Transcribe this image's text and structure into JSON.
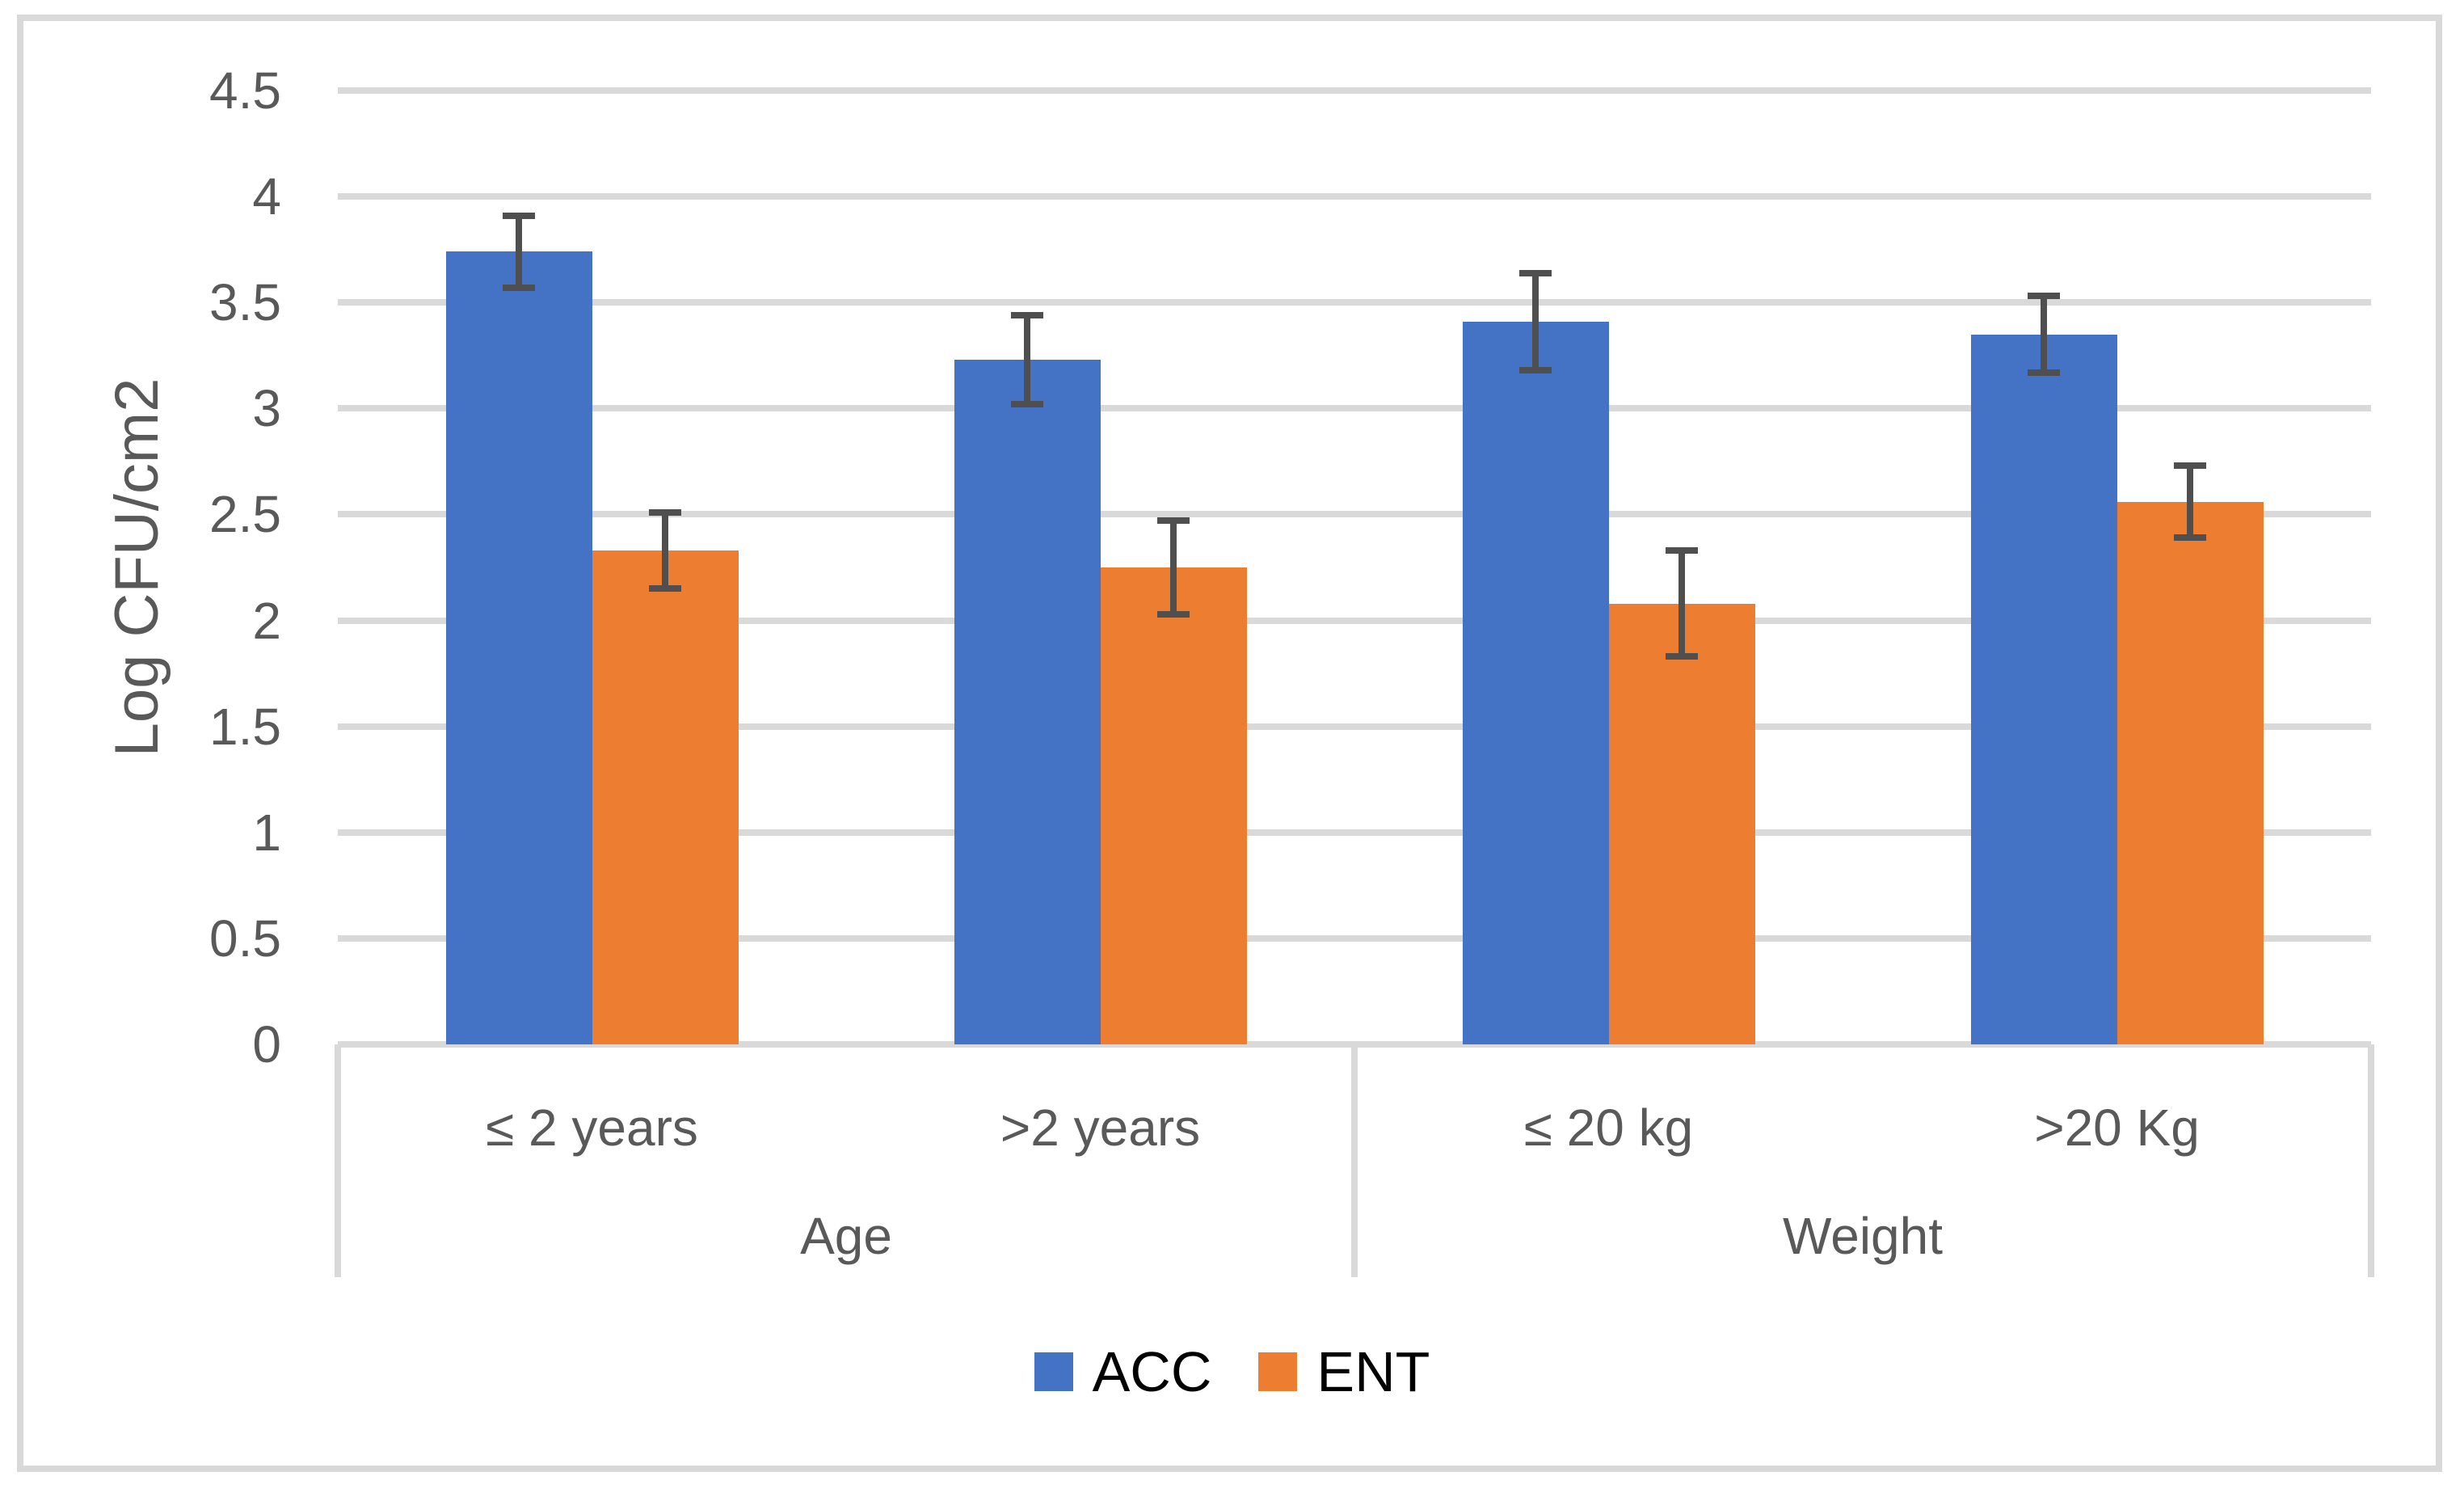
{
  "figure": {
    "background": "#FFFFFF",
    "frame_border_color": "#D9D9D9"
  },
  "chart_data": {
    "type": "bar",
    "title": "",
    "xlabel": "",
    "ylabel": "Log CFU/cm2",
    "ylim": [
      0,
      4.5
    ],
    "ytick_labels": [
      "4.5",
      "4",
      "3.5",
      "3",
      "2.5",
      "2",
      "1.5",
      "1",
      "0.5",
      "0"
    ],
    "ytick_values": [
      4.5,
      4,
      3.5,
      3,
      2.5,
      2,
      1.5,
      1,
      0.5,
      0
    ],
    "grid": true,
    "legend_position": "bottom",
    "categories": [
      "≤ 2 years",
      ">2 years",
      "≤ 20 kg",
      ">20 Kg"
    ],
    "group_axis": [
      {
        "label": "Age",
        "categories": [
          "≤ 2 years",
          ">2 years"
        ]
      },
      {
        "label": "Weight",
        "categories": [
          "≤ 20 kg",
          ">20 Kg"
        ]
      }
    ],
    "series": [
      {
        "name": "ACC",
        "color": "#4472C4",
        "values": [
          3.74,
          3.23,
          3.41,
          3.35
        ],
        "errors": [
          0.17,
          0.21,
          0.23,
          0.18
        ]
      },
      {
        "name": "ENT",
        "color": "#ED7D31",
        "values": [
          2.33,
          2.25,
          2.08,
          2.56
        ],
        "errors": [
          0.18,
          0.22,
          0.25,
          0.17
        ]
      }
    ],
    "colors": {
      "gridline": "#D9D9D9",
      "axis_line": "#D9D9D9",
      "error_bar": "#4F4F4F",
      "axis_text": "#595959",
      "legend_text": "#000000"
    }
  }
}
